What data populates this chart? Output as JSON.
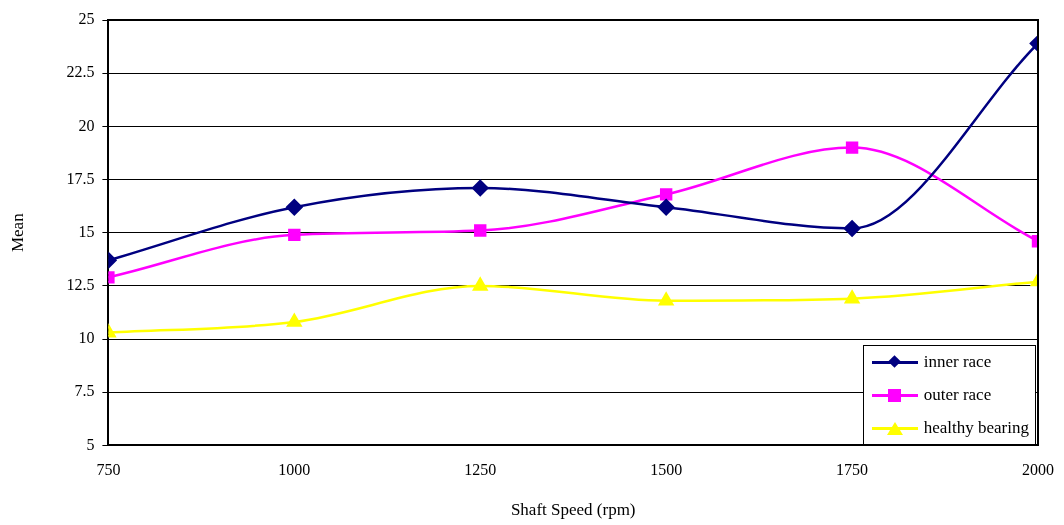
{
  "chart_data": {
    "type": "line",
    "xlabel": "Shaft Speed (rpm)",
    "ylabel": "Mean",
    "x": [
      750,
      1000,
      1250,
      1500,
      1750,
      2000
    ],
    "xlim": [
      750,
      2000
    ],
    "xticks": [
      750,
      1000,
      1250,
      1500,
      1750,
      2000
    ],
    "ylim": [
      5,
      25
    ],
    "yticks": [
      5,
      7.5,
      10,
      12.5,
      15,
      17.5,
      20,
      22.5,
      25
    ],
    "grid": "y",
    "legend": "bottom right",
    "series": [
      {
        "name": "inner race",
        "color": "#000080",
        "marker": "diamond",
        "values": [
          13.7,
          16.2,
          17.1,
          16.2,
          15.2,
          23.9
        ]
      },
      {
        "name": "outer race",
        "color": "#ff00ff",
        "marker": "square",
        "values": [
          12.9,
          14.9,
          15.1,
          16.8,
          19.0,
          14.6
        ]
      },
      {
        "name": "healthy bearing",
        "color": "#ffff00",
        "marker": "triangle",
        "values": [
          10.3,
          10.8,
          12.5,
          11.8,
          11.9,
          12.7
        ]
      }
    ]
  }
}
